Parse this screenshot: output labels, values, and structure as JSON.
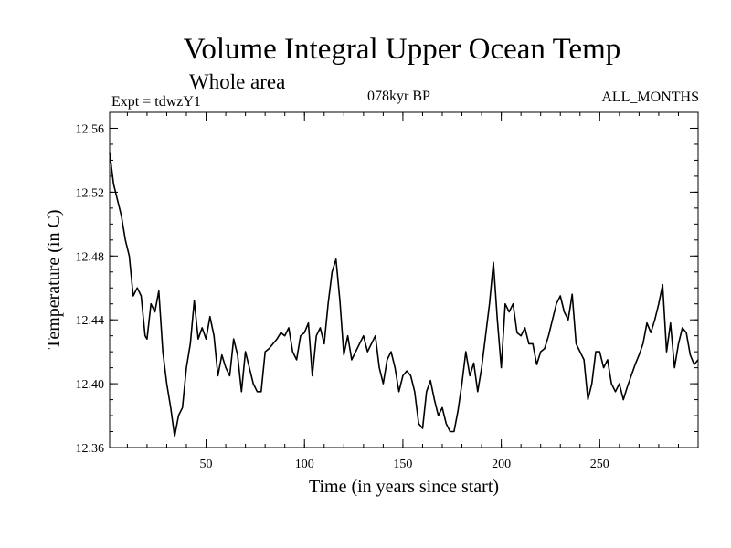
{
  "chart_data": {
    "type": "line",
    "title": "Volume Integral Upper Ocean Temp",
    "subtitle": "Whole area",
    "experiment_label": "Expt = tdwzY1",
    "period_label": "078kyr BP",
    "months_label": "ALL_MONTHS",
    "xlabel": "Time (in years since start)",
    "ylabel": "Temperature (in C)",
    "xlim": [
      1,
      300
    ],
    "ylim": [
      12.36,
      12.57
    ],
    "x_ticks": [
      50,
      100,
      150,
      200,
      250
    ],
    "x_tick_labels": [
      "50",
      "100",
      "150",
      "200",
      "250"
    ],
    "y_ticks": [
      12.36,
      12.4,
      12.44,
      12.48,
      12.52,
      12.56
    ],
    "y_tick_labels": [
      "12.36",
      "12.40",
      "12.44",
      "12.48",
      "12.52",
      "12.56"
    ],
    "grid": false,
    "series": [
      {
        "name": "Temperature",
        "color": "#000000",
        "x": [
          1,
          3,
          5,
          7,
          9,
          11,
          13,
          15,
          17,
          19,
          20,
          22,
          24,
          26,
          28,
          30,
          32,
          34,
          36,
          38,
          40,
          42,
          44,
          46,
          48,
          50,
          52,
          54,
          56,
          58,
          60,
          62,
          64,
          66,
          68,
          70,
          72,
          74,
          76,
          78,
          80,
          82,
          84,
          86,
          88,
          90,
          92,
          94,
          96,
          98,
          100,
          102,
          104,
          106,
          108,
          110,
          112,
          114,
          116,
          118,
          120,
          122,
          124,
          126,
          128,
          130,
          132,
          134,
          136,
          138,
          140,
          142,
          144,
          146,
          148,
          150,
          152,
          154,
          156,
          158,
          160,
          162,
          164,
          166,
          168,
          170,
          172,
          174,
          176,
          178,
          180,
          182,
          184,
          186,
          188,
          190,
          192,
          194,
          196,
          198,
          200,
          202,
          204,
          206,
          208,
          210,
          212,
          214,
          216,
          218,
          220,
          222,
          224,
          226,
          228,
          230,
          232,
          234,
          236,
          238,
          240,
          242,
          244,
          246,
          248,
          250,
          252,
          254,
          256,
          258,
          260,
          262,
          264,
          266,
          268,
          270,
          272,
          274,
          276,
          278,
          280,
          282,
          284,
          286,
          288,
          290,
          292,
          294,
          296,
          298,
          300
        ],
        "y": [
          12.545,
          12.525,
          12.515,
          12.505,
          12.49,
          12.48,
          12.455,
          12.46,
          12.455,
          12.43,
          12.428,
          12.45,
          12.445,
          12.458,
          12.42,
          12.4,
          12.385,
          12.367,
          12.38,
          12.385,
          12.41,
          12.425,
          12.452,
          12.428,
          12.435,
          12.428,
          12.442,
          12.43,
          12.405,
          12.418,
          12.41,
          12.405,
          12.428,
          12.418,
          12.395,
          12.42,
          12.41,
          12.4,
          12.395,
          12.395,
          12.42,
          12.422,
          12.425,
          12.428,
          12.432,
          12.43,
          12.435,
          12.42,
          12.415,
          12.43,
          12.432,
          12.438,
          12.405,
          12.43,
          12.435,
          12.425,
          12.45,
          12.47,
          12.478,
          12.452,
          12.418,
          12.43,
          12.415,
          12.42,
          12.425,
          12.43,
          12.42,
          12.425,
          12.43,
          12.41,
          12.4,
          12.415,
          12.42,
          12.41,
          12.395,
          12.405,
          12.408,
          12.405,
          12.395,
          12.375,
          12.372,
          12.395,
          12.402,
          12.39,
          12.38,
          12.385,
          12.375,
          12.37,
          12.37,
          12.383,
          12.4,
          12.42,
          12.405,
          12.413,
          12.395,
          12.41,
          12.43,
          12.45,
          12.476,
          12.44,
          12.41,
          12.45,
          12.445,
          12.45,
          12.432,
          12.43,
          12.435,
          12.425,
          12.425,
          12.412,
          12.42,
          12.422,
          12.43,
          12.44,
          12.45,
          12.455,
          12.445,
          12.44,
          12.456,
          12.425,
          12.42,
          12.415,
          12.39,
          12.4,
          12.42,
          12.42,
          12.41,
          12.415,
          12.4,
          12.395,
          12.4,
          12.39,
          12.398,
          12.405,
          12.412,
          12.418,
          12.425,
          12.438,
          12.432,
          12.44,
          12.45,
          12.462,
          12.42,
          12.438,
          12.41,
          12.425,
          12.435,
          12.432,
          12.418,
          12.412,
          12.415
        ]
      }
    ]
  }
}
